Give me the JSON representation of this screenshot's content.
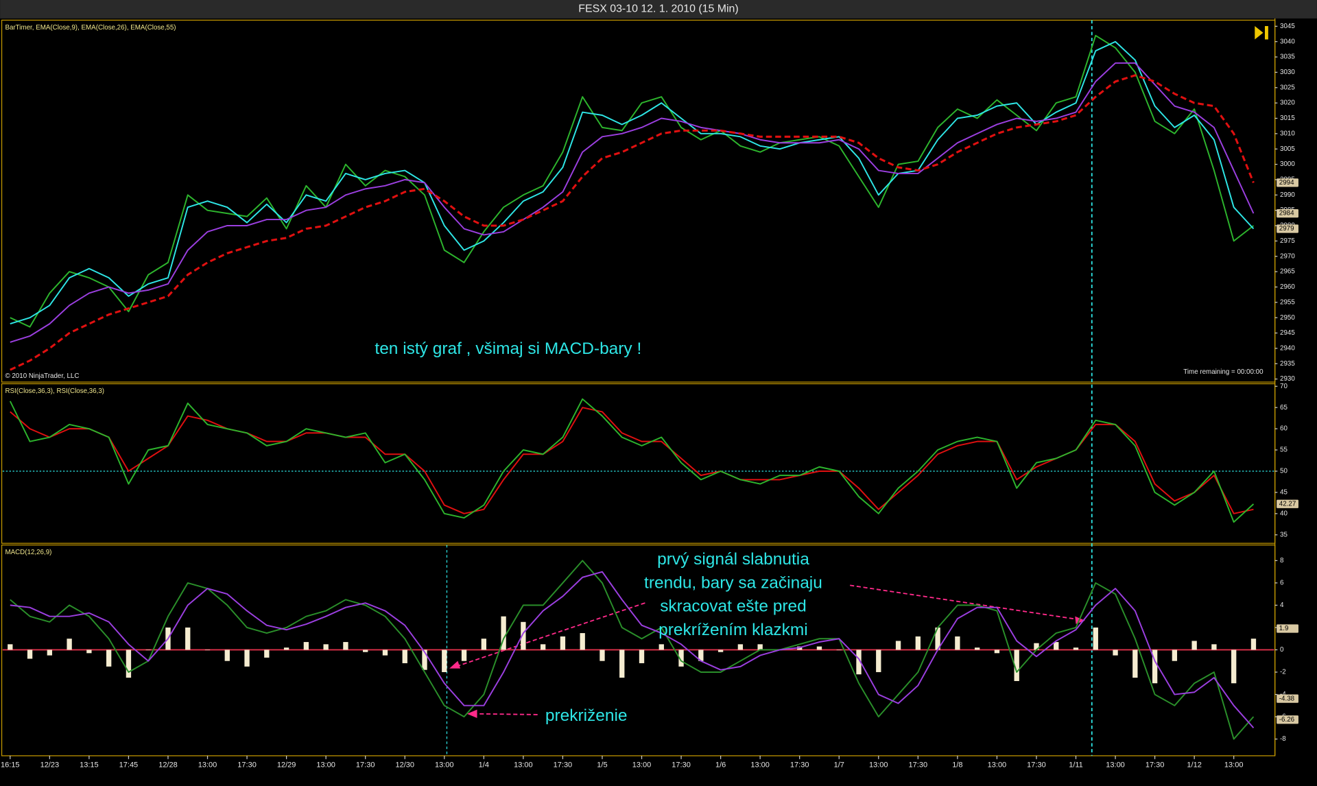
{
  "chart_data": [
    {
      "type": "line",
      "title": "FESX 03-10  12. 1. 2010 (15 Min)",
      "label": "BarTimer, EMA(Close,9), EMA(Close,26), EMA(Close,55)",
      "annotations": [
        "ten istý graf , všimaj si MACD-bary !",
        "© 2010 NinjaTrader, LLC",
        "Time remaining = 00:00:00"
      ],
      "ylim": [
        2929,
        3047
      ],
      "yticks": [
        2930,
        2935,
        2940,
        2945,
        2950,
        2955,
        2960,
        2965,
        2970,
        2975,
        2980,
        2985,
        2990,
        2995,
        3000,
        3005,
        3010,
        3015,
        3020,
        3025,
        3030,
        3035,
        3040,
        3045
      ],
      "series": [
        {
          "color": "#2db52d",
          "values": [
            2950,
            2947,
            2958,
            2965,
            2963,
            2960,
            2952,
            2964,
            2968,
            2990,
            2985,
            2984,
            2983,
            2989,
            2979,
            2993,
            2986,
            3000,
            2993,
            2998,
            2996,
            2990,
            2972,
            2968,
            2978,
            2986,
            2990,
            2993,
            3004,
            3022,
            3012,
            3011,
            3020,
            3022,
            3012,
            3008,
            3011,
            3006,
            3004,
            3007,
            3008,
            3009,
            3006,
            2996,
            2986,
            3000,
            3001,
            3012,
            3018,
            3015,
            3021,
            3016,
            3011,
            3020,
            3022,
            3042,
            3038,
            3030,
            3014,
            3010,
            3018,
            2998,
            2975,
            2980
          ]
        },
        {
          "color": "#2ee6e6",
          "values": [
            2948,
            2950,
            2954,
            2963,
            2966,
            2963,
            2957,
            2961,
            2963,
            2986,
            2988,
            2986,
            2981,
            2987,
            2981,
            2990,
            2988,
            2997,
            2995,
            2997,
            2998,
            2994,
            2980,
            2972,
            2975,
            2981,
            2988,
            2991,
            2999,
            3017,
            3016,
            3013,
            3016,
            3020,
            3015,
            3010,
            3010,
            3009,
            3006,
            3005,
            3007,
            3008,
            3009,
            3002,
            2990,
            2997,
            2998,
            3008,
            3015,
            3016,
            3019,
            3020,
            3013,
            3017,
            3020,
            3037,
            3040,
            3034,
            3019,
            3012,
            3016,
            3008,
            2986,
            2979
          ]
        },
        {
          "color": "#9b3fe0",
          "values": [
            2942,
            2944,
            2948,
            2954,
            2958,
            2960,
            2958,
            2959,
            2961,
            2972,
            2978,
            2980,
            2980,
            2982,
            2982,
            2985,
            2986,
            2990,
            2992,
            2993,
            2995,
            2994,
            2986,
            2979,
            2977,
            2978,
            2982,
            2986,
            2991,
            3004,
            3009,
            3010,
            3012,
            3015,
            3014,
            3012,
            3011,
            3010,
            3008,
            3007,
            3007,
            3007,
            3008,
            3005,
            2998,
            2997,
            2997,
            3002,
            3007,
            3010,
            3013,
            3015,
            3014,
            3015,
            3017,
            3027,
            3033,
            3033,
            3026,
            3019,
            3017,
            3012,
            2998,
            2984
          ]
        },
        {
          "color": "#e01010",
          "dashed": true,
          "values": [
            2933,
            2936,
            2940,
            2945,
            2948,
            2951,
            2953,
            2955,
            2957,
            2964,
            2968,
            2971,
            2973,
            2975,
            2976,
            2979,
            2980,
            2983,
            2986,
            2988,
            2991,
            2992,
            2988,
            2983,
            2980,
            2980,
            2982,
            2985,
            2988,
            2996,
            3002,
            3004,
            3007,
            3010,
            3011,
            3011,
            3011,
            3010,
            3009,
            3009,
            3009,
            3009,
            3009,
            3007,
            3002,
            2999,
            2998,
            3000,
            3004,
            3007,
            3010,
            3012,
            3013,
            3014,
            3016,
            3022,
            3027,
            3029,
            3027,
            3023,
            3020,
            3019,
            3010,
            2994
          ]
        }
      ],
      "markers": [
        2994,
        2984,
        2979
      ]
    },
    {
      "type": "line",
      "label": "RSI(Close,36,3), RSI(Close,36,3)",
      "ylim": [
        33,
        70.6
      ],
      "yticks": [
        35,
        40,
        45,
        50,
        55,
        60,
        65,
        70
      ],
      "levels": [
        50
      ],
      "series": [
        {
          "color": "#e01010",
          "values": [
            64,
            60,
            58,
            60,
            60,
            58,
            50,
            53,
            56,
            63,
            62,
            60,
            59,
            57,
            57,
            59,
            59,
            58,
            58,
            54,
            54,
            50,
            42,
            40,
            41,
            48,
            54,
            54,
            57,
            65,
            64,
            59,
            57,
            57,
            53,
            49,
            50,
            48,
            48,
            48,
            49,
            50,
            50,
            46,
            41,
            45,
            49,
            54,
            56,
            57,
            57,
            48,
            51,
            53,
            55,
            61,
            61,
            57,
            47,
            43,
            45,
            49,
            40,
            41
          ]
        },
        {
          "color": "#2db52d",
          "values": [
            66.5,
            57,
            58,
            61,
            60,
            58,
            47,
            55,
            56,
            66,
            61,
            60,
            59,
            56,
            57,
            60,
            59,
            58,
            59,
            52,
            54,
            48,
            40,
            39,
            42,
            50,
            55,
            54,
            58,
            67,
            63,
            58,
            56,
            58,
            52,
            48,
            50,
            48,
            47,
            49,
            49,
            51,
            50,
            44,
            40,
            46,
            50,
            55,
            57,
            58,
            57,
            46,
            52,
            53,
            55,
            62,
            61,
            56,
            45,
            42,
            45,
            50,
            38,
            42.27
          ]
        }
      ],
      "markers": [
        42.27
      ]
    },
    {
      "type": "macd",
      "label": "MACD(12,26,9)",
      "annotations": [
        [
          "prvý signál slabnutia",
          "trendu, bary sa začinaju",
          "skracovat ešte pred",
          "prekrížením klazkmi"
        ],
        "prekriženie"
      ],
      "ylim": [
        -9.5,
        9.4
      ],
      "yticks": [
        -8,
        -6,
        -4,
        -2,
        0,
        2,
        4,
        6,
        8
      ],
      "histogram": {
        "color": "#f5ecd0",
        "values": [
          0.5,
          -0.8,
          -0.5,
          1,
          -0.3,
          -1.5,
          -2.5,
          0,
          2,
          2,
          0,
          -1,
          -1.5,
          -0.7,
          0.2,
          0.7,
          0.5,
          0.7,
          -0.2,
          -0.5,
          -1.2,
          -1.8,
          -2,
          -1,
          1,
          3,
          2.5,
          0.5,
          1.2,
          1.5,
          -1,
          -2.5,
          -1.2,
          0.5,
          -1.5,
          -1,
          -0.2,
          0.5,
          0.5,
          0,
          0.3,
          0.3,
          0,
          -2.2,
          -2,
          0.8,
          1.2,
          2,
          1.2,
          0.2,
          -0.3,
          -2.8,
          0.6,
          0.7,
          0.2,
          2,
          -0.5,
          -2.5,
          -3,
          -1,
          0.8,
          0.5,
          -3,
          1
        ]
      },
      "series": [
        {
          "color": "#2a8f2a",
          "values": [
            4.5,
            3,
            2.5,
            4,
            3,
            1,
            -2,
            -1,
            3,
            6,
            5.5,
            4,
            2,
            1.5,
            2,
            3,
            3.5,
            4.5,
            4,
            3,
            1,
            -2,
            -5,
            -6,
            -4,
            1,
            4,
            4,
            6,
            8,
            6,
            2,
            1,
            2,
            -1,
            -2,
            -2,
            -1,
            0,
            0,
            0.5,
            1,
            1,
            -3,
            -6,
            -4,
            -2,
            2,
            4,
            4,
            3.5,
            -2,
            0,
            1.5,
            2,
            6,
            5,
            1,
            -4,
            -5,
            -3,
            -2,
            -8,
            -6
          ]
        },
        {
          "color": "#9b3fe0",
          "values": [
            4,
            3.8,
            3,
            3,
            3.3,
            2.5,
            0.5,
            -1,
            1,
            4,
            5.5,
            5,
            3.5,
            2.2,
            1.8,
            2.3,
            3,
            3.8,
            4.2,
            3.5,
            2.2,
            -0.2,
            -3,
            -5,
            -5,
            -2,
            1.5,
            3.5,
            4.8,
            6.5,
            7,
            4.5,
            2.2,
            1.5,
            0.5,
            -1,
            -1.8,
            -1.5,
            -0.5,
            0,
            0.2,
            0.7,
            1,
            -0.8,
            -4,
            -4.8,
            -3.2,
            0,
            2.8,
            3.8,
            3.8,
            0.8,
            -0.6,
            0.8,
            1.8,
            4,
            5.5,
            3.5,
            -1,
            -4,
            -3.8,
            -2.5,
            -5,
            -7
          ]
        }
      ],
      "markers": [
        1.9,
        -4.38,
        -6.26
      ],
      "categories": [
        "16:15",
        null,
        "12/23",
        null,
        "13:15",
        null,
        "17:45",
        null,
        "12/28",
        null,
        "13:00",
        null,
        "17:30",
        null,
        "12/29",
        null,
        "13:00",
        null,
        "17:30",
        null,
        "12/30",
        null,
        "13:00",
        null,
        "1/4",
        null,
        "13:00",
        null,
        "17:30",
        null,
        "1/5",
        null,
        "13:00",
        null,
        "17:30",
        null,
        "1/6",
        null,
        "13:00",
        null,
        "17:30",
        null,
        "1/7",
        null,
        "13:00",
        null,
        "17:30",
        null,
        "1/8",
        null,
        "13:00",
        null,
        "17:30",
        null,
        "1/11",
        null,
        "13:00",
        null,
        "17:30",
        null,
        "1/12",
        null,
        "13:00",
        null
      ]
    }
  ]
}
